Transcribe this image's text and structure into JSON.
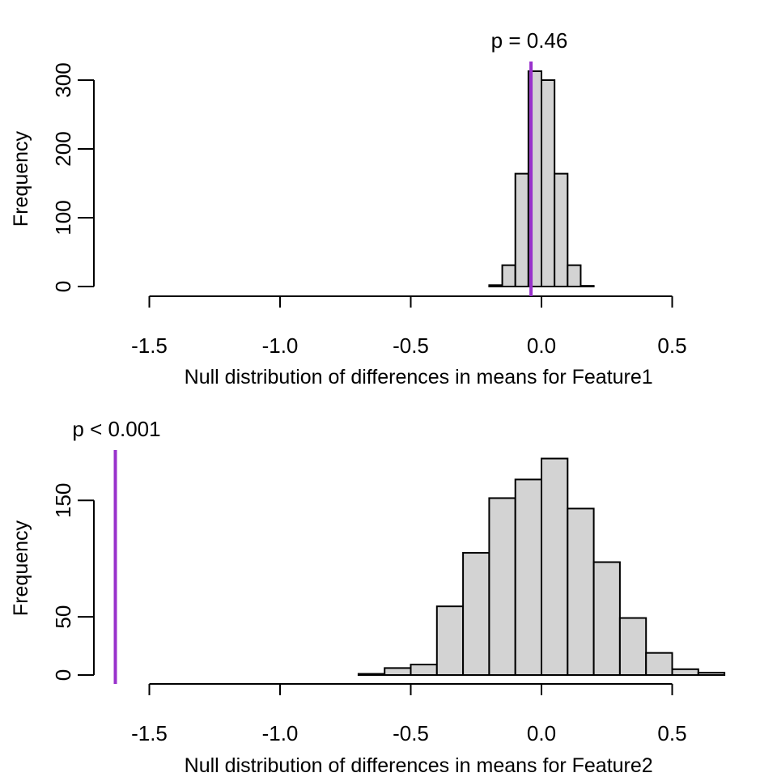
{
  "chart_data": [
    {
      "type": "bar",
      "subtype": "histogram",
      "xlabel": "Null distribution of differences in means for Feature1",
      "ylabel": "Frequency",
      "xlim": [
        -1.75,
        0.7
      ],
      "ylim": [
        0,
        325
      ],
      "xticks": [
        -1.5,
        -1.0,
        -0.5,
        0.0,
        0.5
      ],
      "xtick_labels": [
        "-1.5",
        "-1.0",
        "-0.5",
        "0.0",
        "0.5"
      ],
      "yticks": [
        0,
        100,
        200,
        300
      ],
      "ytick_labels": [
        "0",
        "100",
        "200",
        "300"
      ],
      "bins": [
        {
          "x0": -0.2,
          "x1": -0.15,
          "count": 2
        },
        {
          "x0": -0.15,
          "x1": -0.1,
          "count": 31
        },
        {
          "x0": -0.1,
          "x1": -0.05,
          "count": 164
        },
        {
          "x0": -0.05,
          "x1": 0.0,
          "count": 313
        },
        {
          "x0": 0.0,
          "x1": 0.05,
          "count": 300
        },
        {
          "x0": 0.05,
          "x1": 0.1,
          "count": 164
        },
        {
          "x0": 0.1,
          "x1": 0.15,
          "count": 31
        },
        {
          "x0": 0.15,
          "x1": 0.2,
          "count": 1
        }
      ],
      "observed_line": {
        "x": -0.04,
        "color": "#9932CC"
      },
      "p_label": "p = 0.46"
    },
    {
      "type": "bar",
      "subtype": "histogram",
      "xlabel": "Null distribution of differences in means for Feature2",
      "ylabel": "Frequency",
      "xlim": [
        -1.75,
        0.7
      ],
      "ylim": [
        0,
        185
      ],
      "xticks": [
        -1.5,
        -1.0,
        -0.5,
        0.0,
        0.5
      ],
      "xtick_labels": [
        "-1.5",
        "-1.0",
        "-0.5",
        "0.0",
        "0.5"
      ],
      "yticks": [
        0,
        50,
        150
      ],
      "ytick_labels": [
        "0",
        "50",
        "150"
      ],
      "bins": [
        {
          "x0": -0.7,
          "x1": -0.6,
          "count": 1
        },
        {
          "x0": -0.6,
          "x1": -0.5,
          "count": 6
        },
        {
          "x0": -0.5,
          "x1": -0.4,
          "count": 9
        },
        {
          "x0": -0.4,
          "x1": -0.3,
          "count": 59
        },
        {
          "x0": -0.3,
          "x1": -0.2,
          "count": 105
        },
        {
          "x0": -0.2,
          "x1": -0.1,
          "count": 152
        },
        {
          "x0": -0.1,
          "x1": 0.0,
          "count": 168
        },
        {
          "x0": 0.0,
          "x1": 0.1,
          "count": 186
        },
        {
          "x0": 0.1,
          "x1": 0.2,
          "count": 143
        },
        {
          "x0": 0.2,
          "x1": 0.3,
          "count": 97
        },
        {
          "x0": 0.3,
          "x1": 0.4,
          "count": 49
        },
        {
          "x0": 0.4,
          "x1": 0.5,
          "count": 19
        },
        {
          "x0": 0.5,
          "x1": 0.6,
          "count": 5
        },
        {
          "x0": 0.6,
          "x1": 0.7,
          "count": 2
        }
      ],
      "observed_line": {
        "x": -1.63,
        "color": "#9932CC"
      },
      "p_label": "p < 0.001"
    }
  ]
}
